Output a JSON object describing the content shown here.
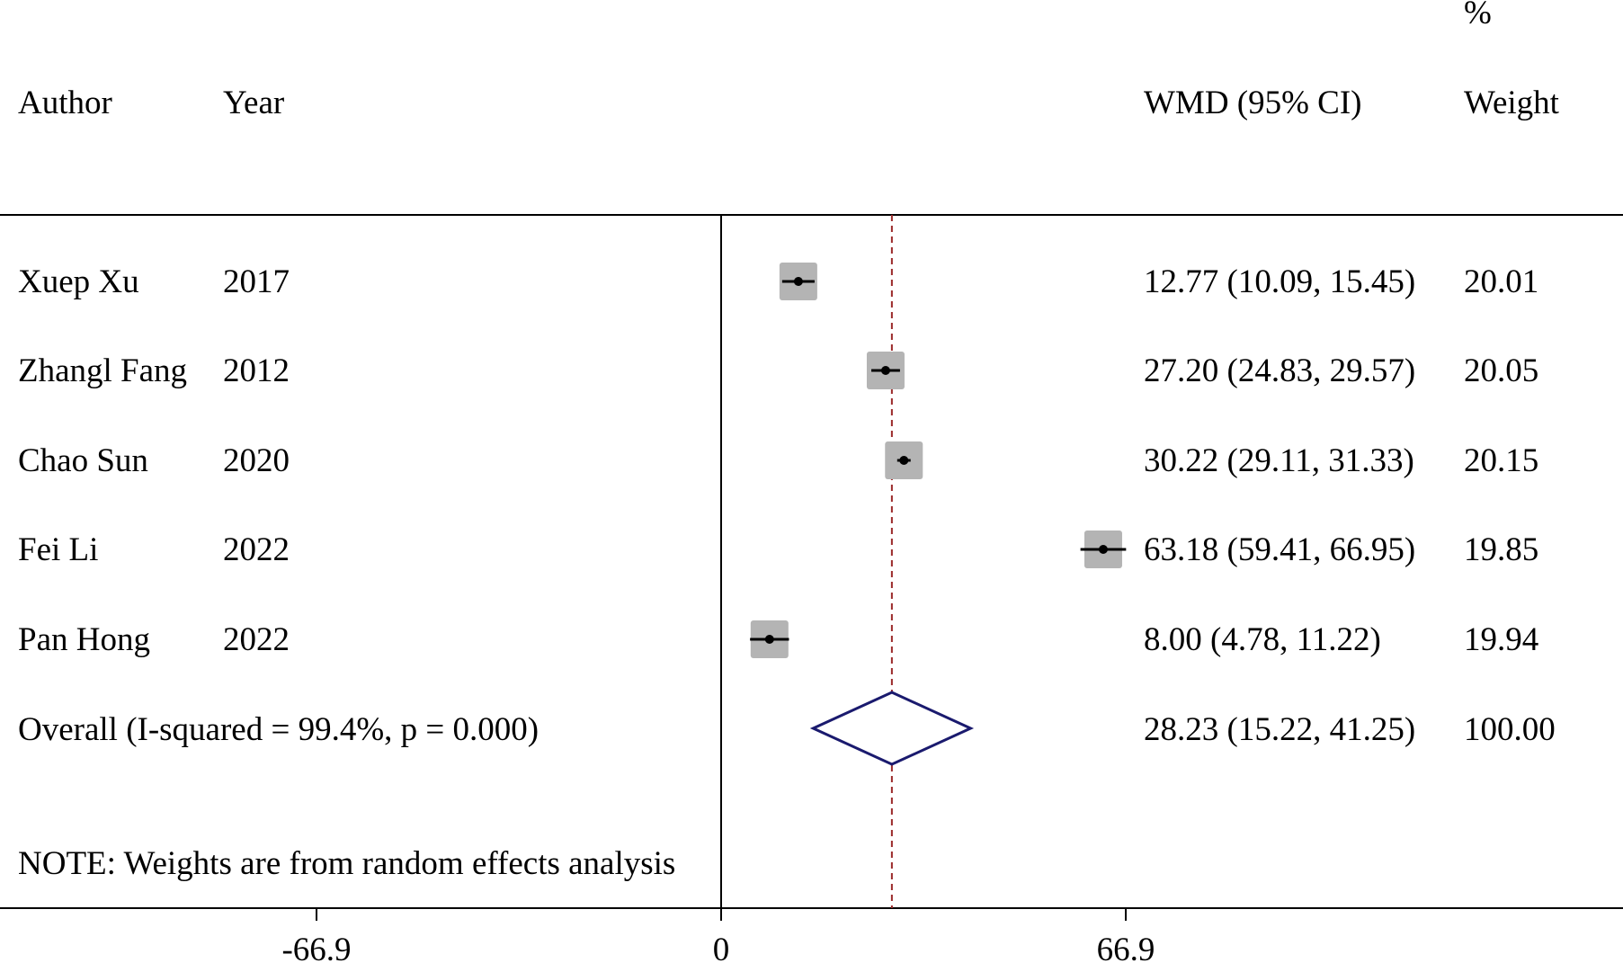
{
  "headers": {
    "author": "Author",
    "year": "Year",
    "effect": "WMD (95% CI)",
    "weight_pct": "%",
    "weight": "Weight"
  },
  "note": "NOTE: Weights are from random effects analysis",
  "overall": {
    "label": "Overall  (I-squared = 99.4%, p = 0.000)",
    "ci_text": "28.23 (15.22, 41.25)",
    "weight": "100.00",
    "estimate": 28.23,
    "lower": 15.22,
    "upper": 41.25
  },
  "chart_data": {
    "type": "forest",
    "x_ticks": [
      "-66.9",
      "0",
      "66.9"
    ],
    "x_tick_values": [
      -66.9,
      0,
      66.9
    ],
    "xlim": [
      -66.9,
      66.9
    ],
    "reference_line": 0,
    "summary_line": 28.23,
    "studies": [
      {
        "author": "Xuep Xu",
        "year": "2017",
        "estimate": 12.77,
        "lower": 10.09,
        "upper": 15.45,
        "ci_text": "12.77 (10.09, 15.45)",
        "weight": 20.01,
        "weight_text": "20.01"
      },
      {
        "author": "Zhangl Fang",
        "year": "2012",
        "estimate": 27.2,
        "lower": 24.83,
        "upper": 29.57,
        "ci_text": "27.20 (24.83, 29.57)",
        "weight": 20.05,
        "weight_text": "20.05"
      },
      {
        "author": "Chao Sun",
        "year": "2020",
        "estimate": 30.22,
        "lower": 29.11,
        "upper": 31.33,
        "ci_text": "30.22 (29.11, 31.33)",
        "weight": 20.15,
        "weight_text": "20.15"
      },
      {
        "author": "Fei Li",
        "year": "2022",
        "estimate": 63.18,
        "lower": 59.41,
        "upper": 66.95,
        "ci_text": "63.18 (59.41, 66.95)",
        "weight": 19.85,
        "weight_text": "19.85"
      },
      {
        "author": "Pan Hong",
        "year": "2022",
        "estimate": 8.0,
        "lower": 4.78,
        "upper": 11.22,
        "ci_text": "8.00 (4.78, 11.22)",
        "weight": 19.94,
        "weight_text": "19.94"
      }
    ],
    "colors": {
      "box": "#b4b4b4",
      "ci_line": "#000000",
      "diamond": "#1a1a6e",
      "summary_line": "#9b2a2a",
      "axis": "#000000"
    }
  }
}
